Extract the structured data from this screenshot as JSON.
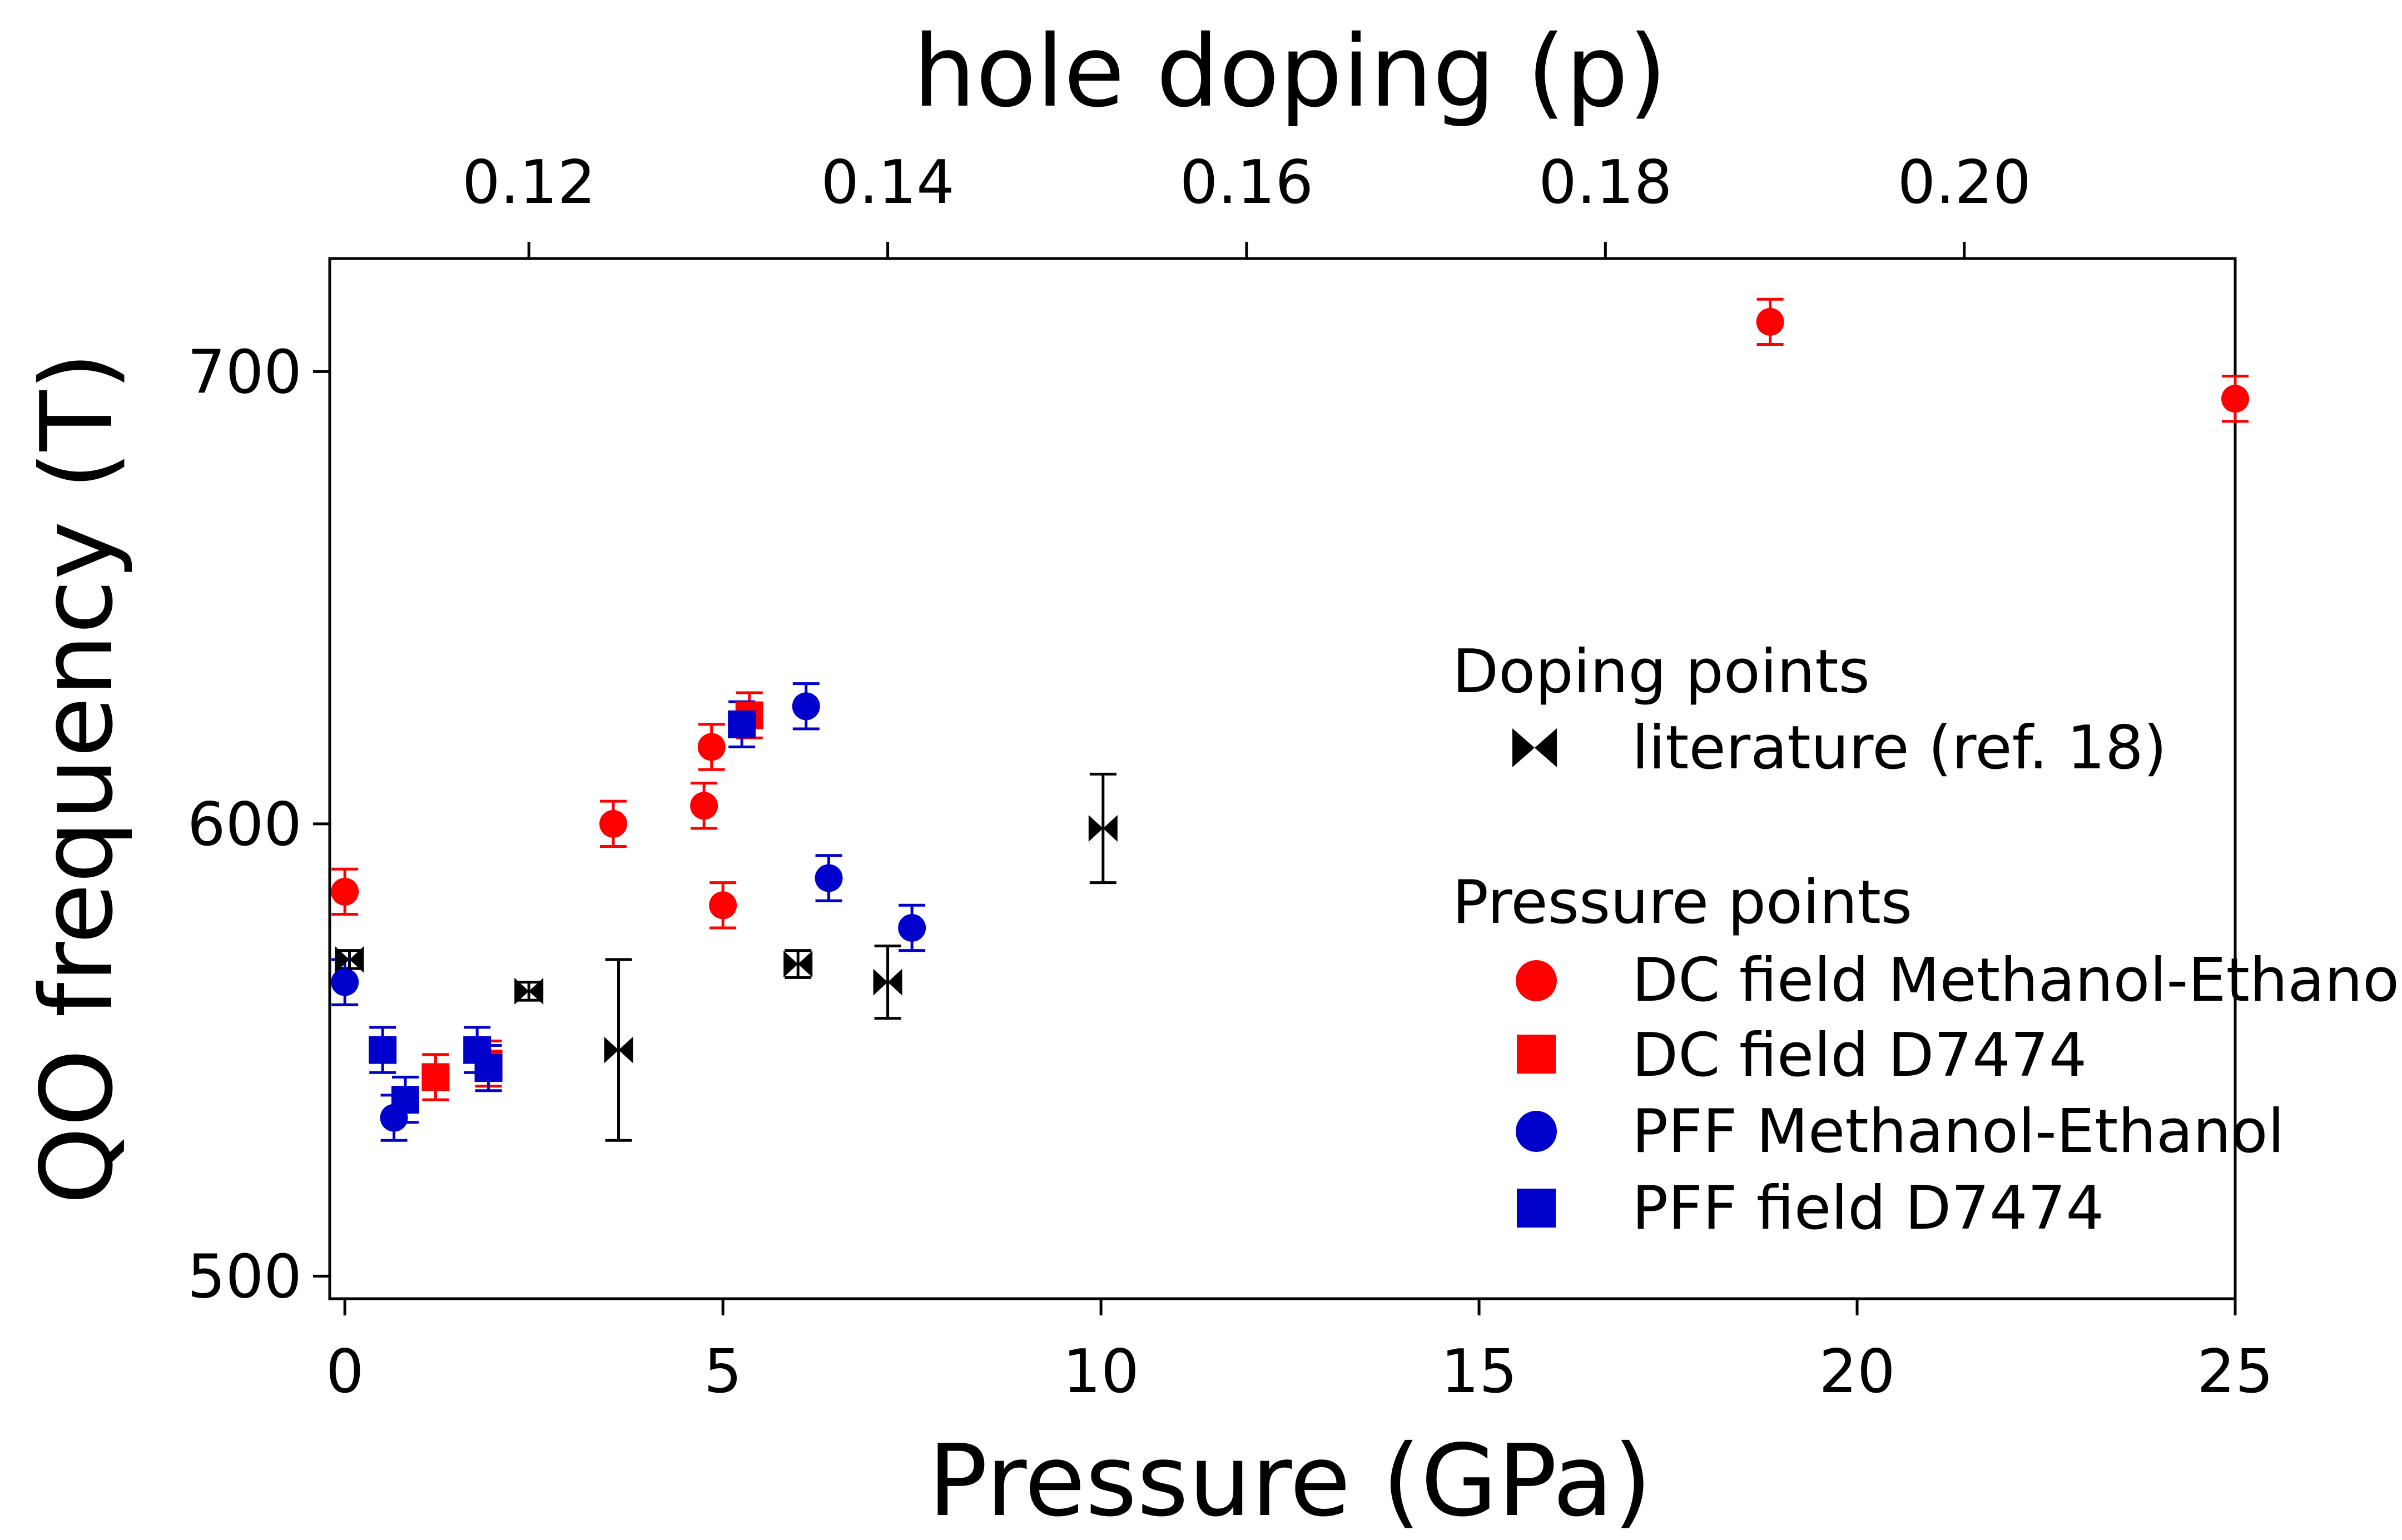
{
  "chart_data": {
    "type": "scatter",
    "title": "",
    "xlabel": "Pressure (GPa)",
    "ylabel": "QO frequency (T)",
    "x2label": "hole doping (p)",
    "xlim": [
      -0.2,
      25
    ],
    "ylim": [
      495,
      725
    ],
    "x2lim": [
      0.1089,
      0.2151
    ],
    "xticks": [
      0,
      5,
      10,
      15,
      20,
      25
    ],
    "xtick_labels": [
      "0",
      "5",
      "10",
      "15",
      "20",
      "25"
    ],
    "yticks": [
      500,
      600,
      700
    ],
    "ytick_labels": [
      "500",
      "600",
      "700"
    ],
    "x2ticks": [
      0.12,
      0.14,
      0.16,
      0.18,
      0.2
    ],
    "x2tick_labels": [
      "0.12",
      "0.14",
      "0.16",
      "0.18",
      "0.20"
    ],
    "legend": {
      "position": "right",
      "groups": [
        {
          "title": "Doping points",
          "entries": [
            "literature (ref. 18)"
          ]
        },
        {
          "title": "Pressure points",
          "entries": [
            "DC field Methanol-Ethanol",
            "DC field D7474",
            "PFF Methanol-Ethanol",
            "PFF field D7474"
          ]
        }
      ]
    },
    "series": [
      {
        "name": "literature (ref. 18)",
        "marker": "bowtie",
        "color": "#000000",
        "axis": "top",
        "points": [
          {
            "p": 0.11,
            "y": 570,
            "err": 2
          },
          {
            "p": 0.12,
            "y": 563,
            "err": 2
          },
          {
            "p": 0.125,
            "y": 550,
            "err": 20
          },
          {
            "p": 0.135,
            "y": 569,
            "err": 3
          },
          {
            "p": 0.14,
            "y": 565,
            "err": 8
          },
          {
            "p": 0.152,
            "y": 599,
            "err": 12
          }
        ]
      },
      {
        "name": "DC field Methanol-Ethanol",
        "marker": "circle",
        "color": "#ff0000",
        "axis": "bottom",
        "points": [
          {
            "x": 0.0,
            "y": 585,
            "err": 5
          },
          {
            "x": 3.55,
            "y": 600,
            "err": 5
          },
          {
            "x": 4.75,
            "y": 604,
            "err": 5
          },
          {
            "x": 4.85,
            "y": 617,
            "err": 5
          },
          {
            "x": 5.0,
            "y": 582,
            "err": 5
          },
          {
            "x": 18.85,
            "y": 711,
            "err": 5
          },
          {
            "x": 25.0,
            "y": 694,
            "err": 5
          }
        ]
      },
      {
        "name": "DC field D7474",
        "marker": "square",
        "color": "#ff0000",
        "axis": "bottom",
        "points": [
          {
            "x": 1.2,
            "y": 544,
            "err": 5
          },
          {
            "x": 1.9,
            "y": 547,
            "err": 5
          },
          {
            "x": 5.35,
            "y": 624,
            "err": 5
          }
        ]
      },
      {
        "name": "PFF Methanol-Ethanol",
        "marker": "circle",
        "color": "#0000cc",
        "axis": "bottom",
        "points": [
          {
            "x": 0.0,
            "y": 565,
            "err": 5
          },
          {
            "x": 0.65,
            "y": 535,
            "err": 5
          },
          {
            "x": 6.1,
            "y": 626,
            "err": 5
          },
          {
            "x": 6.4,
            "y": 588,
            "err": 5
          },
          {
            "x": 7.5,
            "y": 577,
            "err": 5
          }
        ]
      },
      {
        "name": "PFF field D7474",
        "marker": "square",
        "color": "#0000cc",
        "axis": "bottom",
        "points": [
          {
            "x": 0.5,
            "y": 550,
            "err": 5
          },
          {
            "x": 0.8,
            "y": 539,
            "err": 5
          },
          {
            "x": 1.75,
            "y": 550,
            "err": 5
          },
          {
            "x": 1.9,
            "y": 546,
            "err": 5
          },
          {
            "x": 5.25,
            "y": 622,
            "err": 5
          }
        ]
      }
    ]
  }
}
